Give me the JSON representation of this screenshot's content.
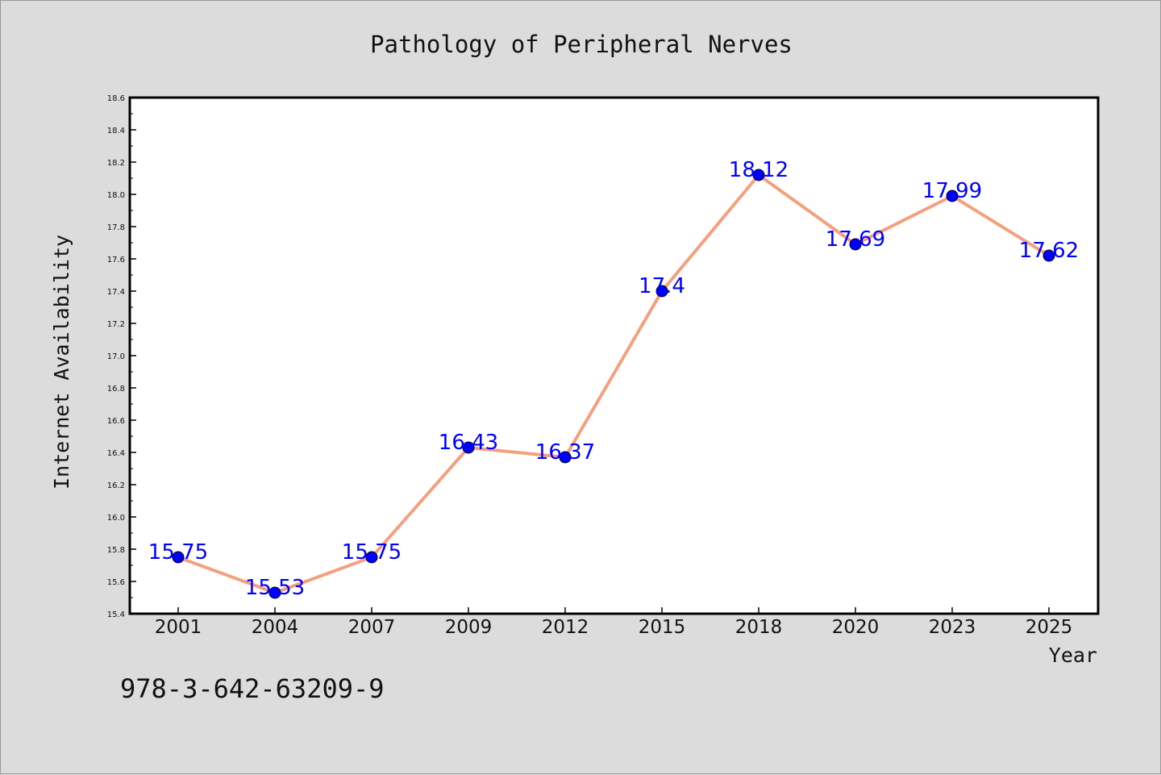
{
  "chart_data": {
    "type": "line",
    "title": "Pathology of Peripheral Nerves",
    "xlabel": "Year",
    "ylabel": "Internet Availability",
    "categories": [
      "2001",
      "2004",
      "2007",
      "2009",
      "2012",
      "2015",
      "2018",
      "2020",
      "2023",
      "2025"
    ],
    "values": [
      15.75,
      15.53,
      15.75,
      16.43,
      16.37,
      17.4,
      18.12,
      17.69,
      17.99,
      17.62
    ],
    "data_labels": [
      "15.75",
      "15.53",
      "15.75",
      "16.43",
      "16.37",
      "17.4",
      "18.12",
      "17.69",
      "17.99",
      "17.62"
    ],
    "ylim": [
      15.4,
      18.6
    ],
    "yticks": [
      "15.4",
      "15.6",
      "15.8",
      "16.0",
      "16.2",
      "16.4",
      "16.6",
      "16.8",
      "17.0",
      "17.2",
      "17.4",
      "17.6",
      "17.8",
      "18.0",
      "18.2",
      "18.4",
      "18.6"
    ],
    "grid": false,
    "legend": "none",
    "colors": {
      "line": "#f4a07e",
      "marker": "#0000ff",
      "data_label": "#0000ff",
      "background": "#dcdcdc",
      "plot_background": "#ffffff"
    }
  },
  "annotation": {
    "isbn": "978-3-642-63209-9"
  }
}
